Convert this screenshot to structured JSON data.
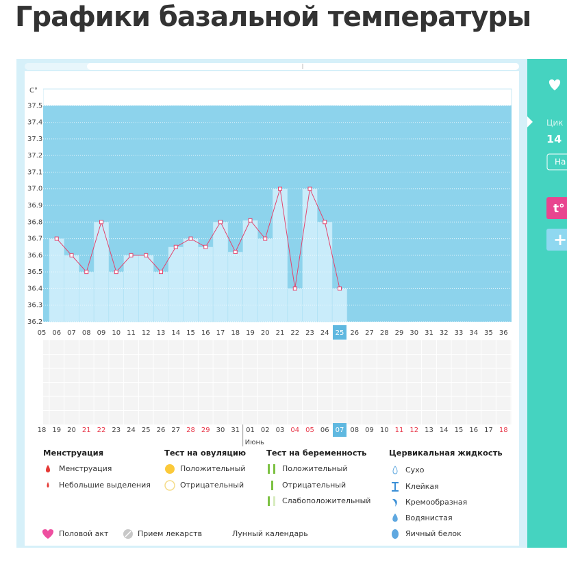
{
  "header": {
    "title": "Графики базальной температуры"
  },
  "chart_data": {
    "type": "line",
    "y_unit": "C°",
    "categories": [
      "05",
      "06",
      "07",
      "08",
      "09",
      "10",
      "11",
      "12",
      "13",
      "14",
      "15",
      "16",
      "17",
      "18",
      "19",
      "20",
      "21",
      "22",
      "23",
      "24",
      "25",
      "26",
      "27",
      "28",
      "29",
      "30",
      "31",
      "32",
      "33",
      "34",
      "35",
      "36"
    ],
    "values": [
      null,
      36.7,
      36.6,
      36.5,
      36.8,
      36.5,
      36.6,
      36.6,
      36.5,
      36.65,
      36.7,
      36.65,
      36.8,
      36.62,
      36.81,
      36.7,
      37.0,
      36.4,
      37.0,
      36.8,
      36.4,
      null,
      null,
      null,
      null,
      null,
      null,
      null,
      null,
      null,
      null,
      null
    ],
    "dates": [
      "18",
      "19",
      "20",
      "21",
      "22",
      "23",
      "24",
      "25",
      "26",
      "27",
      "28",
      "29",
      "30",
      "31",
      "01",
      "02",
      "03",
      "04",
      "05",
      "06",
      "07",
      "08",
      "09",
      "10",
      "11",
      "12",
      "13",
      "14",
      "15",
      "16",
      "17",
      "18"
    ],
    "weekend_dates": [
      3,
      4,
      10,
      11,
      17,
      18,
      24,
      25,
      31
    ],
    "weekend_color": "#e8384a",
    "today_index": 20,
    "month_label": "Июнь",
    "month_index": 14,
    "color": "#e2456e",
    "bar_color": "#c9ecfa",
    "area_color": "#8dd3ec",
    "ylim": [
      36.2,
      37.6
    ],
    "yticks": [
      36.2,
      36.3,
      36.4,
      36.5,
      36.6,
      36.7,
      36.8,
      36.9,
      {
        "value": 37,
        "label": "37.0"
      },
      37.1,
      37.2,
      37.3,
      37.4,
      37.5
    ],
    "grid": true
  },
  "legend": {
    "menstruation": {
      "title": "Менструация",
      "items": [
        "Менструация",
        "Небольшие выделения"
      ]
    },
    "ovulation": {
      "title": "Тест на овуляцию",
      "items": [
        "Положительный",
        "Отрицательный"
      ]
    },
    "pregnancy": {
      "title": "Тест на беременность",
      "items": [
        "Положительный",
        "Отрицательный",
        "Слабоположительный"
      ]
    },
    "cervical": {
      "title": "Цервикальная жидкость",
      "items": [
        "Сухо",
        "Клейкая",
        "Кремообразная",
        "Водянистая",
        "Яичный белок"
      ]
    },
    "extra": [
      "Половой акт",
      "Прием лекарств",
      "Лунный календарь"
    ]
  },
  "sidebar": {
    "cycle_label": "Цик",
    "cycle_day": "14",
    "button": "На",
    "temp_button": "t°",
    "add_button": "+"
  }
}
